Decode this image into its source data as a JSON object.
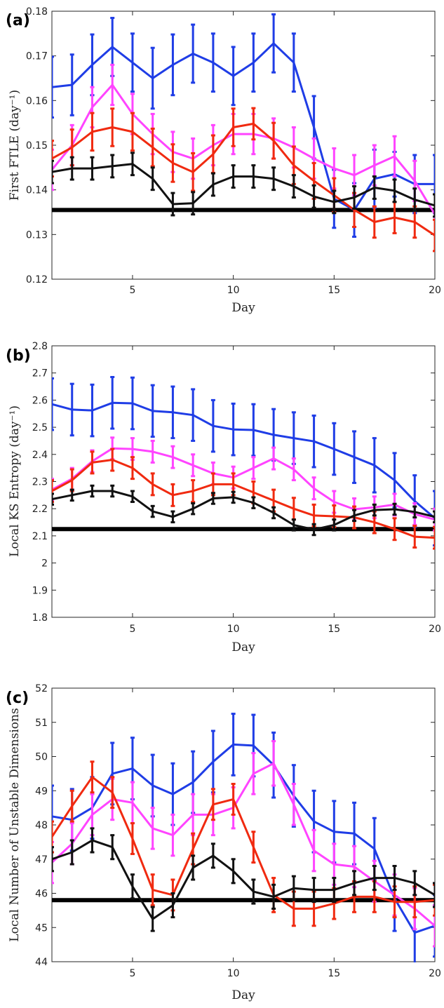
{
  "colors": {
    "blue": "#1f3de6",
    "magenta": "#ff44ff",
    "red": "#f02a10",
    "black": "#111111",
    "baseline": "#000000"
  },
  "chart_data": [
    {
      "type": "line",
      "panel_label": "(a)",
      "xlabel": "Day",
      "ylabel": "First FTLE (day⁻¹)",
      "xlim": [
        1,
        20
      ],
      "ylim": [
        0.12,
        0.18
      ],
      "xticks": [
        5,
        10,
        15,
        20
      ],
      "xtick_labels": [
        "5",
        "10",
        "15",
        "20"
      ],
      "yticks": [
        0.12,
        0.13,
        0.14,
        0.15,
        0.16,
        0.17,
        0.18
      ],
      "ytick_labels": [
        "0.12",
        "0.13",
        "0.14",
        "0.15",
        "0.16",
        "0.17",
        "0.18"
      ],
      "baseline": 0.1355,
      "x": [
        1,
        2,
        3,
        4,
        5,
        6,
        7,
        8,
        9,
        10,
        11,
        12,
        13,
        14,
        15,
        16,
        17,
        18,
        19,
        20
      ],
      "series": [
        {
          "color": "blue",
          "values": [
            0.163,
            0.1635,
            0.168,
            0.172,
            0.1685,
            0.165,
            0.168,
            0.1705,
            0.1685,
            0.1655,
            0.1685,
            0.1728,
            0.1685,
            0.154,
            0.138,
            0.1355,
            0.1425,
            0.1435,
            0.1413,
            0.1413
          ],
          "errors": [
            0.0068,
            0.0068,
            0.0068,
            0.0065,
            0.0065,
            0.0068,
            0.0068,
            0.0065,
            0.0065,
            0.0065,
            0.0065,
            0.0065,
            0.0065,
            0.007,
            0.0065,
            0.006,
            0.0065,
            0.005,
            0.0065,
            0.0065
          ]
        },
        {
          "color": "magenta",
          "values": [
            0.1445,
            0.15,
            0.1585,
            0.1635,
            0.157,
            0.1525,
            0.1485,
            0.147,
            0.15,
            0.1525,
            0.1525,
            0.1515,
            0.1495,
            0.147,
            0.1448,
            0.1433,
            0.1455,
            0.1475,
            0.142,
            0.1345
          ],
          "errors": [
            0.0045,
            0.0045,
            0.0045,
            0.0045,
            0.0045,
            0.0045,
            0.0045,
            0.0045,
            0.0045,
            0.0045,
            0.0045,
            0.0045,
            0.0045,
            0.0045,
            0.0045,
            0.0045,
            0.0045,
            0.0045,
            0.0045,
            0.0045
          ]
        },
        {
          "color": "red",
          "values": [
            0.147,
            0.1495,
            0.153,
            0.154,
            0.153,
            0.1495,
            0.146,
            0.144,
            0.148,
            0.154,
            0.1548,
            0.151,
            0.1455,
            0.142,
            0.1388,
            0.1355,
            0.1328,
            0.1338,
            0.1328,
            0.1298
          ],
          "errors": [
            0.004,
            0.004,
            0.0042,
            0.0042,
            0.0042,
            0.0042,
            0.0042,
            0.0042,
            0.0042,
            0.0042,
            0.0035,
            0.004,
            0.0042,
            0.004,
            0.0038,
            0.0038,
            0.0035,
            0.0035,
            0.0035,
            0.0035
          ]
        },
        {
          "color": "black",
          "values": [
            0.144,
            0.1448,
            0.1448,
            0.1453,
            0.1458,
            0.1425,
            0.1368,
            0.137,
            0.1412,
            0.143,
            0.143,
            0.1425,
            0.1408,
            0.1385,
            0.1373,
            0.1383,
            0.1405,
            0.1398,
            0.1378,
            0.1365
          ],
          "errors": [
            0.0025,
            0.0025,
            0.0025,
            0.0025,
            0.0025,
            0.0025,
            0.0025,
            0.0025,
            0.0025,
            0.0025,
            0.0025,
            0.0025,
            0.0025,
            0.0025,
            0.0025,
            0.0025,
            0.0025,
            0.0025,
            0.0025,
            0.0025
          ]
        }
      ]
    },
    {
      "type": "line",
      "panel_label": "(b)",
      "xlabel": "Day",
      "ylabel": "Local KS Entropy (day⁻¹)",
      "xlim": [
        1,
        20
      ],
      "ylim": [
        1.8,
        2.8
      ],
      "xticks": [
        5,
        10,
        15,
        20
      ],
      "xtick_labels": [
        "5",
        "10",
        "15",
        "20"
      ],
      "yticks": [
        1.8,
        1.9,
        2.0,
        2.1,
        2.2,
        2.3,
        2.4,
        2.5,
        2.6,
        2.7,
        2.8
      ],
      "ytick_labels": [
        "1.8",
        "1.9",
        "2",
        "2.1",
        "2.2",
        "2.3",
        "2.4",
        "2.5",
        "2.6",
        "2.7",
        "2.8"
      ],
      "baseline": 2.125,
      "x": [
        1,
        2,
        3,
        4,
        5,
        6,
        7,
        8,
        9,
        10,
        11,
        12,
        13,
        14,
        15,
        16,
        17,
        18,
        19,
        20
      ],
      "series": [
        {
          "color": "blue",
          "values": [
            2.585,
            2.565,
            2.562,
            2.59,
            2.588,
            2.56,
            2.555,
            2.545,
            2.505,
            2.492,
            2.49,
            2.472,
            2.46,
            2.448,
            2.42,
            2.39,
            2.36,
            2.305,
            2.228,
            2.165
          ],
          "errors": [
            0.095,
            0.095,
            0.095,
            0.095,
            0.095,
            0.095,
            0.095,
            0.095,
            0.095,
            0.095,
            0.095,
            0.095,
            0.095,
            0.095,
            0.095,
            0.095,
            0.1,
            0.1,
            0.095,
            0.1
          ]
        },
        {
          "color": "magenta",
          "values": [
            2.27,
            2.31,
            2.375,
            2.422,
            2.42,
            2.41,
            2.39,
            2.36,
            2.33,
            2.315,
            2.35,
            2.385,
            2.345,
            2.275,
            2.225,
            2.198,
            2.205,
            2.215,
            2.18,
            2.16
          ],
          "errors": [
            0.04,
            0.04,
            0.04,
            0.04,
            0.04,
            0.04,
            0.04,
            0.04,
            0.04,
            0.04,
            0.04,
            0.04,
            0.04,
            0.04,
            0.04,
            0.04,
            0.04,
            0.04,
            0.04,
            0.04
          ]
        },
        {
          "color": "red",
          "values": [
            2.265,
            2.305,
            2.37,
            2.38,
            2.35,
            2.29,
            2.25,
            2.265,
            2.29,
            2.29,
            2.26,
            2.23,
            2.2,
            2.175,
            2.172,
            2.168,
            2.15,
            2.125,
            2.097,
            2.093
          ],
          "errors": [
            0.04,
            0.04,
            0.04,
            0.04,
            0.04,
            0.04,
            0.04,
            0.04,
            0.04,
            0.04,
            0.04,
            0.04,
            0.04,
            0.04,
            0.04,
            0.04,
            0.04,
            0.04,
            0.04,
            0.04
          ]
        },
        {
          "color": "black",
          "values": [
            2.235,
            2.25,
            2.265,
            2.265,
            2.245,
            2.19,
            2.17,
            2.2,
            2.238,
            2.242,
            2.222,
            2.185,
            2.14,
            2.123,
            2.14,
            2.175,
            2.195,
            2.198,
            2.188,
            2.17
          ],
          "errors": [
            0.02,
            0.02,
            0.02,
            0.02,
            0.02,
            0.02,
            0.02,
            0.02,
            0.02,
            0.02,
            0.02,
            0.02,
            0.02,
            0.02,
            0.02,
            0.02,
            0.02,
            0.02,
            0.02,
            0.02
          ]
        }
      ]
    },
    {
      "type": "line",
      "panel_label": "(c)",
      "xlabel": "Day",
      "ylabel": "Local Number of Unstable Dimensions",
      "xlim": [
        1,
        20
      ],
      "ylim": [
        44,
        52
      ],
      "xticks": [
        5,
        10,
        15,
        20
      ],
      "xtick_labels": [
        "5",
        "10",
        "15",
        "20"
      ],
      "yticks": [
        44,
        45,
        46,
        47,
        48,
        49,
        50,
        51,
        52
      ],
      "ytick_labels": [
        "44",
        "45",
        "46",
        "47",
        "48",
        "49",
        "50",
        "51",
        "52"
      ],
      "baseline": 45.8,
      "x": [
        1,
        2,
        3,
        4,
        5,
        6,
        7,
        8,
        9,
        10,
        11,
        12,
        13,
        14,
        15,
        16,
        17,
        18,
        19,
        20
      ],
      "series": [
        {
          "color": "blue",
          "values": [
            48.25,
            48.15,
            48.5,
            49.5,
            49.65,
            49.15,
            48.9,
            49.25,
            49.85,
            50.35,
            50.32,
            49.75,
            48.85,
            48.1,
            47.8,
            47.75,
            47.3,
            45.85,
            44.85,
            45.05
          ],
          "errors": [
            0.9,
            0.9,
            0.9,
            0.9,
            0.9,
            0.9,
            0.9,
            0.9,
            0.9,
            0.9,
            0.9,
            0.95,
            0.9,
            0.9,
            0.9,
            0.9,
            0.9,
            0.95,
            0.9,
            0.9
          ]
        },
        {
          "color": "magenta",
          "values": [
            46.9,
            47.45,
            48.3,
            48.75,
            48.65,
            47.9,
            47.7,
            48.3,
            48.3,
            48.5,
            49.5,
            49.8,
            48.6,
            47.25,
            46.85,
            46.78,
            46.35,
            45.95,
            45.55,
            45.05
          ],
          "errors": [
            0.6,
            0.6,
            0.6,
            0.6,
            0.6,
            0.6,
            0.6,
            0.6,
            0.6,
            0.6,
            0.6,
            0.65,
            0.6,
            0.6,
            0.6,
            0.6,
            0.6,
            0.6,
            0.6,
            0.6
          ]
        },
        {
          "color": "red",
          "values": [
            47.65,
            48.55,
            49.4,
            48.95,
            47.6,
            46.1,
            45.95,
            47.3,
            48.6,
            48.75,
            47.35,
            45.95,
            45.55,
            45.55,
            45.7,
            45.9,
            45.9,
            45.75,
            45.75,
            45.8
          ],
          "errors": [
            0.45,
            0.45,
            0.45,
            0.45,
            0.45,
            0.45,
            0.45,
            0.45,
            0.45,
            0.45,
            0.45,
            0.5,
            0.5,
            0.5,
            0.45,
            0.45,
            0.45,
            0.45,
            0.45,
            0.45
          ]
        },
        {
          "color": "black",
          "values": [
            47.0,
            47.2,
            47.55,
            47.35,
            46.2,
            45.25,
            45.65,
            46.75,
            47.1,
            46.65,
            46.05,
            45.9,
            46.15,
            46.1,
            46.1,
            46.3,
            46.45,
            46.45,
            46.3,
            45.95
          ],
          "errors": [
            0.35,
            0.35,
            0.35,
            0.35,
            0.35,
            0.35,
            0.35,
            0.35,
            0.35,
            0.35,
            0.35,
            0.35,
            0.35,
            0.35,
            0.35,
            0.35,
            0.35,
            0.35,
            0.35,
            0.35
          ]
        }
      ]
    }
  ]
}
